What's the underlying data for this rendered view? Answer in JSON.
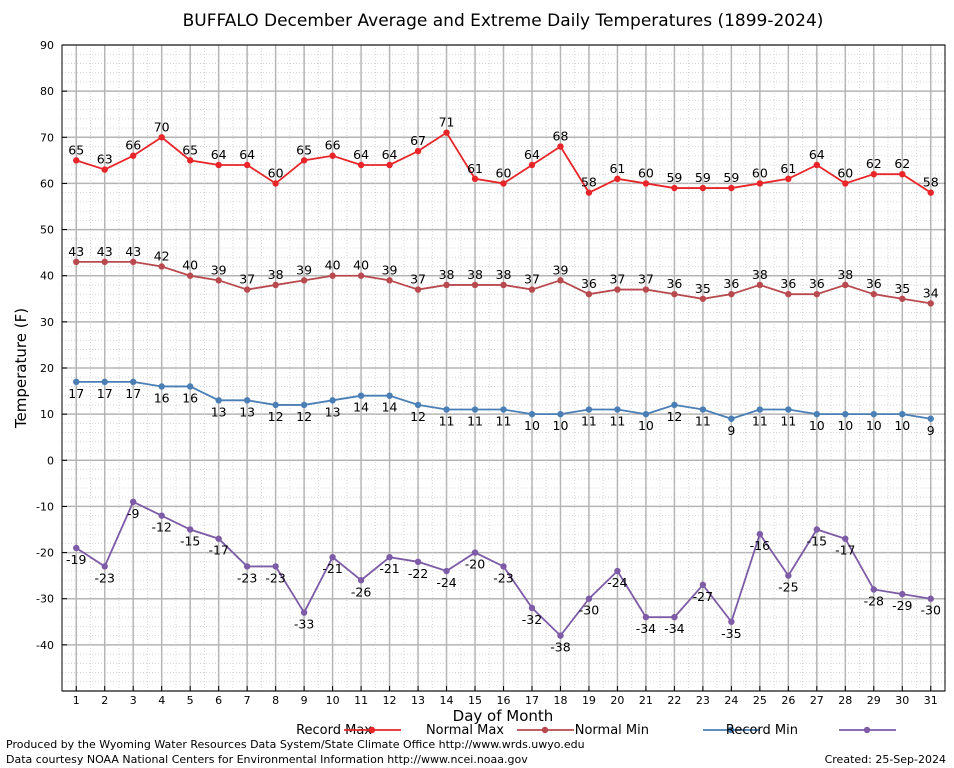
{
  "chart_data": {
    "type": "line",
    "title": "BUFFALO December Average and Extreme Daily Temperatures (1899-2024)",
    "xlabel": "Day of Month",
    "ylabel": "Temperature (F)",
    "x": [
      1,
      2,
      3,
      4,
      5,
      6,
      7,
      8,
      9,
      10,
      11,
      12,
      13,
      14,
      15,
      16,
      17,
      18,
      19,
      20,
      21,
      22,
      23,
      24,
      25,
      26,
      27,
      28,
      29,
      30,
      31
    ],
    "ylim": [
      -50,
      90
    ],
    "yticks": [
      -40,
      -30,
      -20,
      -10,
      0,
      10,
      20,
      30,
      40,
      50,
      60,
      70,
      80,
      90
    ],
    "grid": true,
    "legend_position": "bottom",
    "series": [
      {
        "name": "Record Max",
        "color": "#e8262a",
        "values": [
          65,
          63,
          66,
          70,
          65,
          64,
          64,
          60,
          65,
          66,
          64,
          64,
          67,
          71,
          61,
          60,
          64,
          68,
          58,
          61,
          60,
          59,
          59,
          59,
          60,
          61,
          64,
          60,
          62,
          62,
          58
        ]
      },
      {
        "name": "Normal Max",
        "color": "#b84a4f",
        "values": [
          43,
          43,
          43,
          42,
          40,
          39,
          37,
          38,
          39,
          40,
          40,
          39,
          37,
          38,
          38,
          38,
          37,
          39,
          36,
          37,
          37,
          36,
          35,
          36,
          38,
          36,
          36,
          38,
          36,
          35,
          34
        ]
      },
      {
        "name": "Normal Min",
        "color": "#4a7fb5",
        "values": [
          17,
          17,
          17,
          16,
          16,
          13,
          13,
          12,
          12,
          13,
          14,
          14,
          12,
          11,
          11,
          11,
          10,
          10,
          11,
          11,
          10,
          12,
          11,
          9,
          11,
          11,
          10,
          10,
          10,
          10,
          9
        ]
      },
      {
        "name": "Record Min",
        "color": "#7d5ba6",
        "values": [
          -19,
          -23,
          -9,
          -12,
          -15,
          -17,
          -23,
          -23,
          -33,
          -21,
          -26,
          -21,
          -22,
          -24,
          -20,
          -23,
          -32,
          -38,
          -30,
          -24,
          -34,
          -34,
          -27,
          -35,
          -16,
          -25,
          -15,
          -17,
          -28,
          -29,
          -30
        ]
      }
    ]
  },
  "footer": {
    "line1": "Produced by the Wyoming Water Resources Data System/State Climate Office http://www.wrds.uwyo.edu",
    "line2": "Data courtesy NOAA National Centers for Environmental Information http://www.ncei.noaa.gov",
    "created": "Created:  25-Sep-2024"
  }
}
